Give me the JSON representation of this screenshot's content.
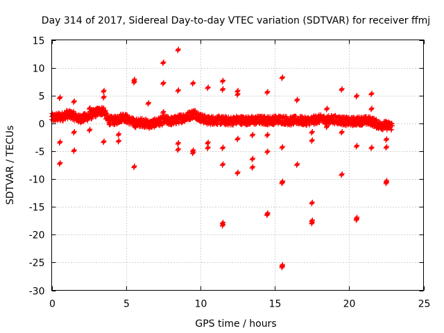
{
  "chart_data": {
    "type": "scatter",
    "title": "Day 314 of 2017, Sidereal Day-to-day VTEC variation (SDTVAR) for receiver ffmj",
    "xlabel": "GPS time / hours",
    "ylabel": "SDTVAR / TECUs",
    "xlim": [
      0,
      25
    ],
    "ylim": [
      -30,
      15
    ],
    "xticks": [
      0,
      5,
      10,
      15,
      20,
      25
    ],
    "yticks": [
      15,
      10,
      5,
      0,
      -5,
      -10,
      -15,
      -20,
      -25,
      -30
    ],
    "grid": true,
    "marker": "plus",
    "color": "#ff0000",
    "band": {
      "x_start": 0.0,
      "x_end": 22.9,
      "step": 0.025,
      "comment_free": true,
      "knots": [
        [
          0.0,
          1.0
        ],
        [
          0.7,
          1.2
        ],
        [
          1.0,
          1.6
        ],
        [
          1.4,
          1.5
        ],
        [
          1.8,
          0.8
        ],
        [
          2.2,
          1.0
        ],
        [
          2.7,
          1.6
        ],
        [
          3.1,
          2.1
        ],
        [
          3.5,
          2.3
        ],
        [
          3.8,
          0.5
        ],
        [
          4.3,
          0.5
        ],
        [
          4.8,
          1.2
        ],
        [
          5.2,
          0.6
        ],
        [
          5.6,
          0.0
        ],
        [
          6.1,
          0.2
        ],
        [
          6.6,
          -0.2
        ],
        [
          7.1,
          0.2
        ],
        [
          7.6,
          0.6
        ],
        [
          8.1,
          0.4
        ],
        [
          8.6,
          0.8
        ],
        [
          9.1,
          1.2
        ],
        [
          9.6,
          1.8
        ],
        [
          10.0,
          1.0
        ],
        [
          10.5,
          0.5
        ],
        [
          11.0,
          0.6
        ],
        [
          11.5,
          0.5
        ],
        [
          12.0,
          0.4
        ],
        [
          12.5,
          0.6
        ],
        [
          13.0,
          0.5
        ],
        [
          13.5,
          0.5
        ],
        [
          14.0,
          0.6
        ],
        [
          14.5,
          0.5
        ],
        [
          15.0,
          0.6
        ],
        [
          15.5,
          0.7
        ],
        [
          16.0,
          0.4
        ],
        [
          16.5,
          0.6
        ],
        [
          17.0,
          0.4
        ],
        [
          17.5,
          0.5
        ],
        [
          18.0,
          0.8
        ],
        [
          18.5,
          0.6
        ],
        [
          19.0,
          0.7
        ],
        [
          19.5,
          0.5
        ],
        [
          20.0,
          0.3
        ],
        [
          20.5,
          0.4
        ],
        [
          21.0,
          0.5
        ],
        [
          21.5,
          0.4
        ],
        [
          22.0,
          -0.3
        ],
        [
          22.5,
          -0.4
        ],
        [
          22.9,
          -0.5
        ]
      ]
    },
    "outliers": [
      [
        0.55,
        4.6
      ],
      [
        0.55,
        -3.4
      ],
      [
        0.55,
        -7.2
      ],
      [
        1.5,
        3.9
      ],
      [
        1.5,
        -1.6
      ],
      [
        1.5,
        -4.9
      ],
      [
        2.55,
        2.7
      ],
      [
        2.55,
        -1.2
      ],
      [
        3.5,
        5.8
      ],
      [
        3.5,
        4.7
      ],
      [
        3.5,
        -3.3
      ],
      [
        4.5,
        -2.0
      ],
      [
        4.5,
        -3.2
      ],
      [
        5.55,
        7.8
      ],
      [
        5.55,
        7.4
      ],
      [
        5.55,
        -7.8
      ],
      [
        6.5,
        3.6
      ],
      [
        7.5,
        10.9
      ],
      [
        7.5,
        7.2
      ],
      [
        7.5,
        2.0
      ],
      [
        8.5,
        13.2
      ],
      [
        8.5,
        5.9
      ],
      [
        8.5,
        -3.6
      ],
      [
        8.5,
        -4.7
      ],
      [
        9.5,
        7.2
      ],
      [
        9.5,
        -4.9
      ],
      [
        9.5,
        -5.3
      ],
      [
        10.5,
        6.4
      ],
      [
        10.5,
        -3.5
      ],
      [
        10.5,
        -4.4
      ],
      [
        11.5,
        7.6
      ],
      [
        11.5,
        6.1
      ],
      [
        11.5,
        -4.4
      ],
      [
        11.5,
        -7.4
      ],
      [
        11.5,
        -17.9
      ],
      [
        11.5,
        -18.3
      ],
      [
        12.5,
        5.8
      ],
      [
        12.5,
        5.2
      ],
      [
        12.5,
        -2.8
      ],
      [
        12.5,
        -8.9
      ],
      [
        13.5,
        -2.1
      ],
      [
        13.5,
        -6.4
      ],
      [
        13.5,
        -7.9
      ],
      [
        14.5,
        5.6
      ],
      [
        14.5,
        -2.1
      ],
      [
        14.5,
        -5.1
      ],
      [
        14.5,
        -16.2
      ],
      [
        14.5,
        -16.4
      ],
      [
        15.5,
        8.2
      ],
      [
        15.5,
        -4.3
      ],
      [
        15.5,
        -10.5
      ],
      [
        15.5,
        -10.7
      ],
      [
        15.5,
        -25.5
      ],
      [
        15.5,
        -25.8
      ],
      [
        16.5,
        4.2
      ],
      [
        16.5,
        -7.4
      ],
      [
        17.5,
        -1.6
      ],
      [
        17.5,
        -3.1
      ],
      [
        17.5,
        -14.3
      ],
      [
        17.5,
        -17.5
      ],
      [
        17.5,
        -17.9
      ],
      [
        18.5,
        2.6
      ],
      [
        18.5,
        -0.6
      ],
      [
        19.5,
        6.1
      ],
      [
        19.5,
        -1.6
      ],
      [
        19.5,
        -9.2
      ],
      [
        20.5,
        4.9
      ],
      [
        20.5,
        -4.1
      ],
      [
        20.5,
        -17.0
      ],
      [
        20.5,
        -17.3
      ],
      [
        21.5,
        5.3
      ],
      [
        21.5,
        2.6
      ],
      [
        21.5,
        -4.4
      ],
      [
        22.5,
        -2.9
      ],
      [
        22.5,
        -4.3
      ],
      [
        22.5,
        -10.4
      ],
      [
        22.5,
        -10.7
      ]
    ]
  }
}
